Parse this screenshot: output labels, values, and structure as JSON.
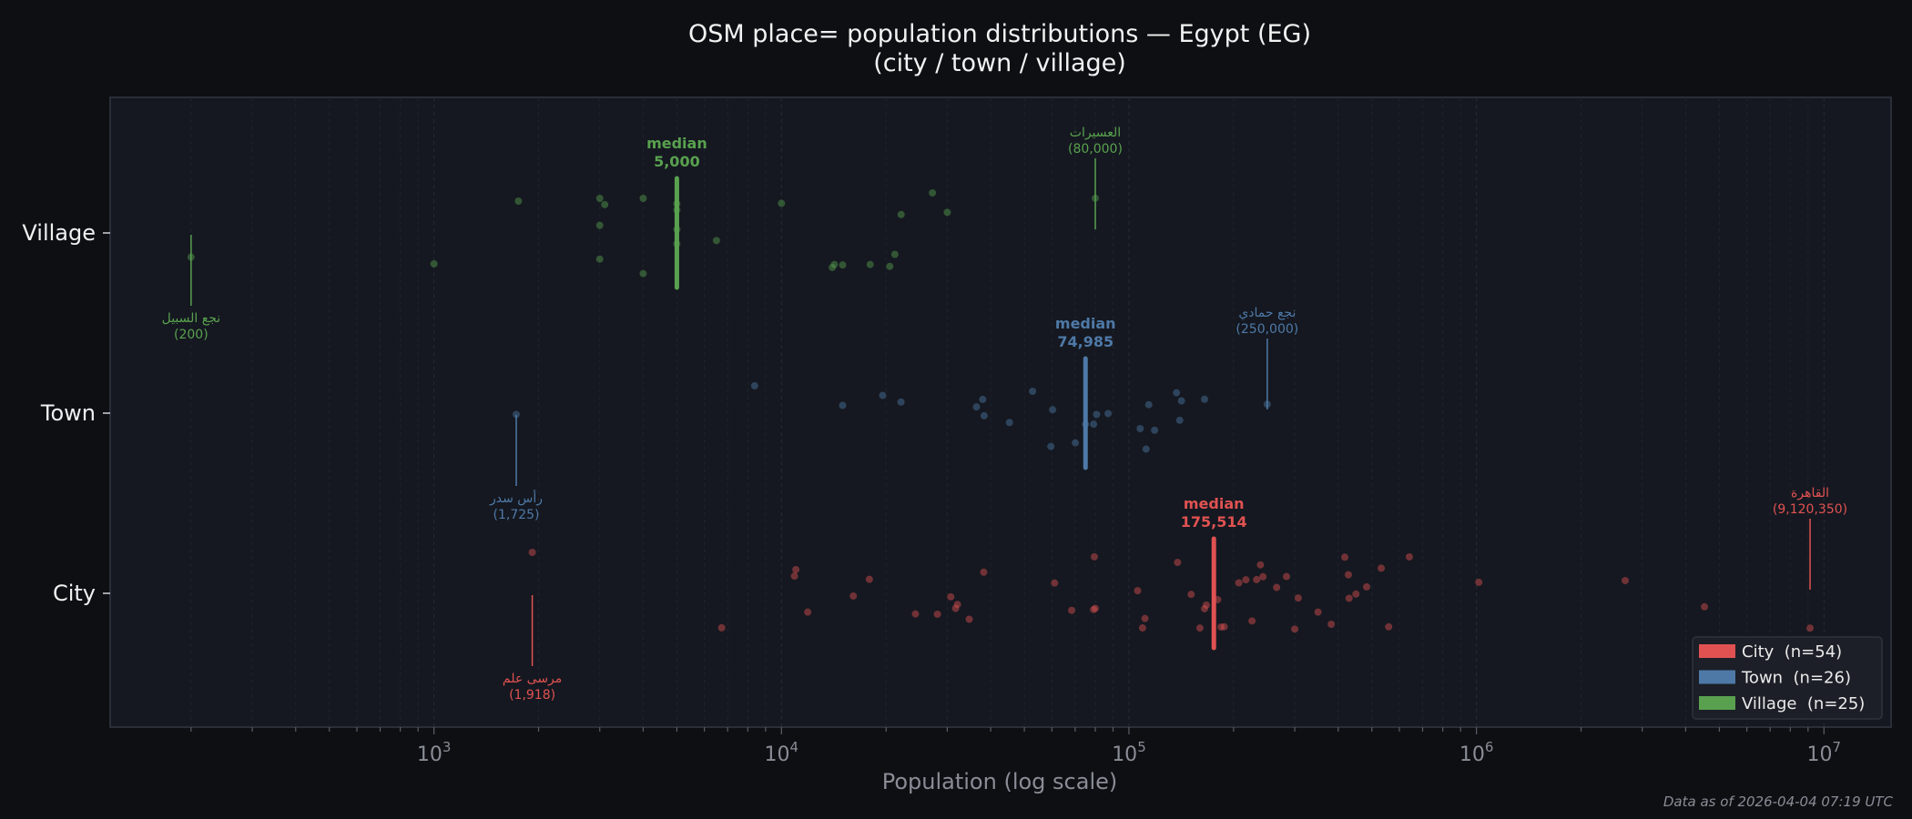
{
  "chart_data": {
    "type": "scatter",
    "title": "OSM place= population distributions — Egypt (EG)",
    "subtitle": "(city / town / village)",
    "xlabel": "Population (log scale)",
    "ylabel": "",
    "xscale": "log",
    "xlim": [
      117,
      15600000
    ],
    "xticks": [
      {
        "base": "10",
        "exp": "3",
        "value": 1000
      },
      {
        "base": "10",
        "exp": "4",
        "value": 10000
      },
      {
        "base": "10",
        "exp": "5",
        "value": 100000
      },
      {
        "base": "10",
        "exp": "6",
        "value": 1000000
      },
      {
        "base": "10",
        "exp": "7",
        "value": 10000000
      }
    ],
    "categories": [
      "City",
      "Town",
      "Village"
    ],
    "grid": "vertical dashed (major and minor)",
    "legend_placement": "bottom-right",
    "footnote": "Data as of 2026-04-04 07:19 UTC",
    "series": [
      {
        "key": "city",
        "category": "City",
        "legend": "City  (n=54)",
        "color": "#e05252",
        "median_label": "median",
        "median_value": 175514,
        "median_text": "175,514",
        "min": {
          "name": "مرسى علم",
          "value": 1918,
          "text": "(1,918)"
        },
        "max": {
          "name": "القاهرة",
          "value": 9120350,
          "text": "(9,120,350)"
        },
        "values": [
          1918,
          6730,
          10900,
          11000,
          11900,
          16100,
          17900,
          24300,
          28100,
          30700,
          31700,
          32100,
          34700,
          38200,
          61100,
          68400,
          79100,
          79500,
          80000,
          105900,
          109400,
          111200,
          138000,
          151000,
          160000,
          165000,
          167000,
          180000,
          184000,
          188000,
          207000,
          217000,
          226000,
          233000,
          239000,
          243000,
          266000,
          284000,
          300000,
          307000,
          350000,
          382000,
          418000,
          428000,
          430000,
          450000,
          483000,
          532000,
          559000,
          641000,
          1016000,
          2680000,
          4530000,
          9120350
        ]
      },
      {
        "key": "town",
        "category": "Town",
        "legend": "Town  (n=26)",
        "color": "#4e79a7",
        "median_label": "median",
        "median_value": 74985,
        "median_text": "74,985",
        "min": {
          "name": "رأس سدر",
          "value": 1725,
          "text": "(1,725)"
        },
        "max": {
          "name": "نجع حمادي",
          "value": 250000,
          "text": "(250,000)"
        },
        "values": [
          1725,
          8370,
          15000,
          19550,
          22080,
          36400,
          37950,
          38300,
          45300,
          52800,
          59600,
          60300,
          70100,
          74985,
          79100,
          80700,
          87100,
          107700,
          112000,
          114000,
          118500,
          137000,
          140000,
          141600,
          165000,
          250000
        ]
      },
      {
        "key": "village",
        "category": "Village",
        "legend": "Village  (n=25)",
        "color": "#59a14f",
        "median_label": "median",
        "median_value": 5000,
        "median_text": "5,000",
        "min": {
          "name": "نجع السبيل",
          "value": 200,
          "text": "(200)"
        },
        "max": {
          "name": "العسيرات",
          "value": 80000,
          "text": "(80,000)"
        },
        "values": [
          200,
          1000,
          1750,
          3000,
          3000,
          3000,
          3100,
          4000,
          4000,
          5000,
          5000,
          5000,
          5000,
          6500,
          10000,
          14000,
          14200,
          15000,
          18000,
          20500,
          21200,
          22100,
          27200,
          30000,
          80000
        ]
      }
    ]
  }
}
